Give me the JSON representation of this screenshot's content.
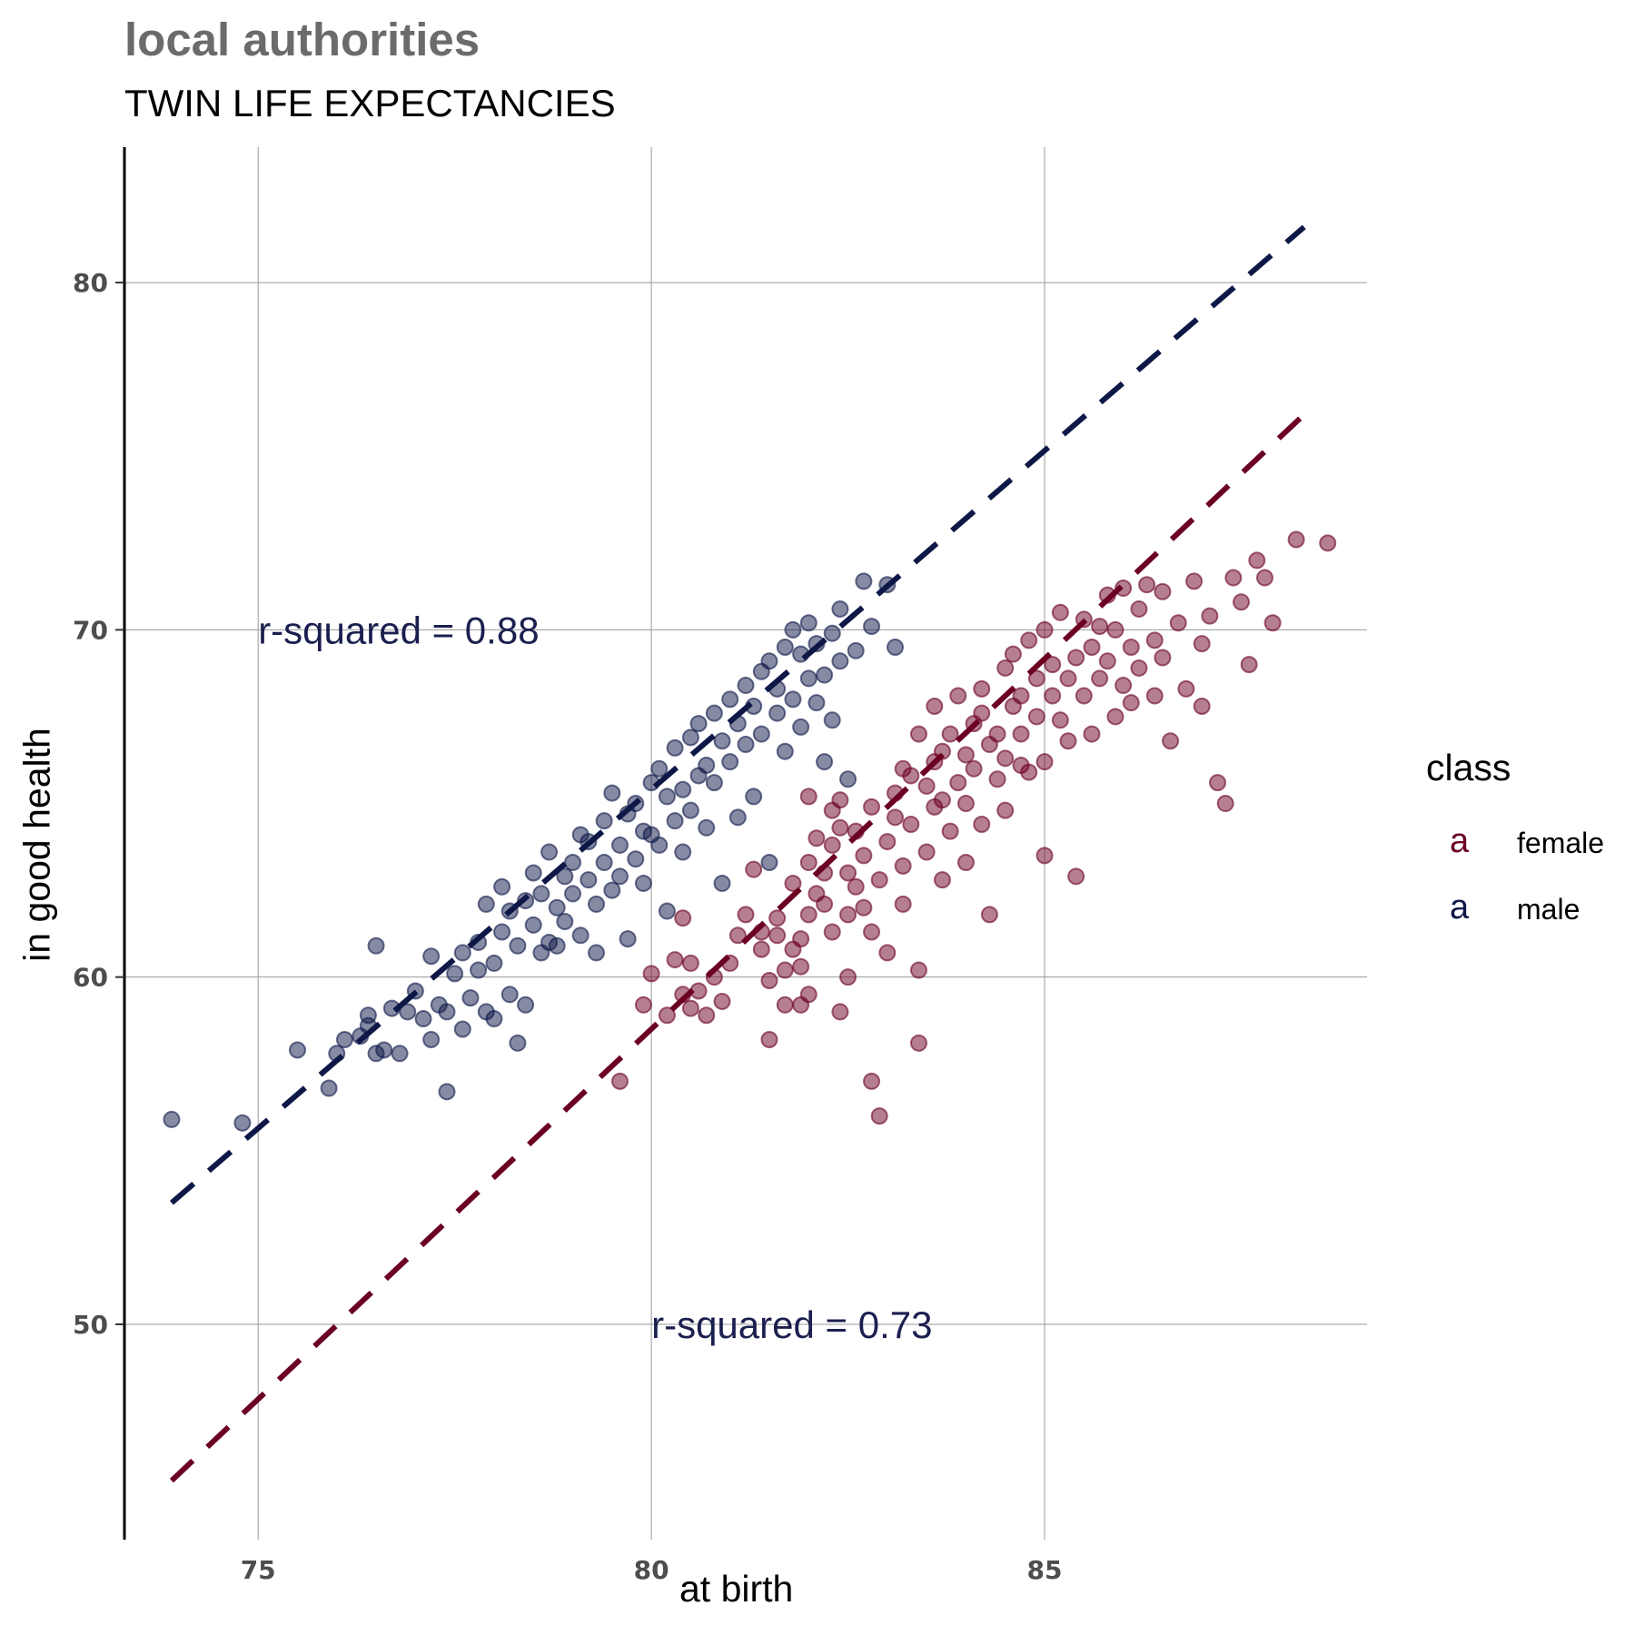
{
  "header": {
    "title": "local authorities",
    "subtitle": "TWIN LIFE EXPECTANCIES"
  },
  "legend": {
    "title": "class",
    "key_glyph": "a",
    "items": [
      {
        "label": "female",
        "color": "#6b0022"
      },
      {
        "label": "male",
        "color": "#0e1847"
      }
    ]
  },
  "chart_data": {
    "type": "scatter",
    "title": "local authorities",
    "subtitle": "TWIN LIFE EXPECTANCIES",
    "xlabel": "at birth",
    "ylabel": "in good health",
    "xlim": [
      73.3,
      89.1
    ],
    "ylim": [
      43.8,
      83.9
    ],
    "xticks": [
      75,
      80,
      85
    ],
    "yticks": [
      50,
      60,
      70,
      80
    ],
    "grid": true,
    "legend_position": "right",
    "series": [
      {
        "name": "female",
        "color": "#6b0022",
        "points": [
          [
            79.6,
            57.0
          ],
          [
            79.9,
            59.2
          ],
          [
            80.0,
            60.1
          ],
          [
            80.2,
            58.9
          ],
          [
            80.3,
            60.5
          ],
          [
            80.4,
            61.7
          ],
          [
            80.4,
            59.5
          ],
          [
            80.5,
            60.4
          ],
          [
            80.5,
            59.1
          ],
          [
            80.6,
            59.6
          ],
          [
            80.7,
            58.9
          ],
          [
            80.8,
            60.0
          ],
          [
            80.9,
            59.3
          ],
          [
            81.0,
            60.4
          ],
          [
            81.1,
            61.2
          ],
          [
            81.2,
            61.8
          ],
          [
            81.3,
            63.1
          ],
          [
            81.4,
            61.3
          ],
          [
            81.4,
            60.8
          ],
          [
            81.5,
            59.9
          ],
          [
            81.5,
            58.2
          ],
          [
            81.6,
            61.7
          ],
          [
            81.6,
            61.2
          ],
          [
            81.7,
            59.2
          ],
          [
            81.7,
            60.2
          ],
          [
            81.8,
            60.8
          ],
          [
            81.8,
            62.7
          ],
          [
            81.9,
            59.2
          ],
          [
            81.9,
            61.1
          ],
          [
            81.9,
            60.3
          ],
          [
            82.0,
            63.3
          ],
          [
            82.0,
            61.8
          ],
          [
            82.0,
            59.5
          ],
          [
            82.0,
            65.2
          ],
          [
            82.1,
            64.0
          ],
          [
            82.1,
            62.4
          ],
          [
            82.2,
            63.0
          ],
          [
            82.2,
            62.1
          ],
          [
            82.3,
            61.3
          ],
          [
            82.3,
            63.8
          ],
          [
            82.3,
            64.8
          ],
          [
            82.4,
            65.1
          ],
          [
            82.4,
            59.0
          ],
          [
            82.4,
            64.3
          ],
          [
            82.5,
            60.0
          ],
          [
            82.5,
            61.8
          ],
          [
            82.5,
            63.0
          ],
          [
            82.6,
            62.6
          ],
          [
            82.6,
            64.2
          ],
          [
            82.7,
            62.0
          ],
          [
            82.7,
            63.5
          ],
          [
            82.8,
            61.3
          ],
          [
            82.8,
            64.9
          ],
          [
            82.8,
            57.0
          ],
          [
            82.9,
            56.0
          ],
          [
            82.9,
            62.8
          ],
          [
            83.0,
            60.7
          ],
          [
            83.0,
            63.9
          ],
          [
            83.1,
            64.6
          ],
          [
            83.1,
            65.3
          ],
          [
            83.2,
            62.1
          ],
          [
            83.2,
            66.0
          ],
          [
            83.2,
            63.2
          ],
          [
            83.3,
            64.4
          ],
          [
            83.3,
            65.8
          ],
          [
            83.4,
            67.0
          ],
          [
            83.4,
            60.2
          ],
          [
            83.4,
            58.1
          ],
          [
            83.5,
            65.5
          ],
          [
            83.5,
            63.6
          ],
          [
            83.6,
            66.2
          ],
          [
            83.6,
            64.9
          ],
          [
            83.6,
            67.8
          ],
          [
            83.7,
            66.5
          ],
          [
            83.7,
            65.1
          ],
          [
            83.7,
            62.8
          ],
          [
            83.8,
            64.2
          ],
          [
            83.8,
            67.0
          ],
          [
            83.9,
            65.6
          ],
          [
            83.9,
            68.1
          ],
          [
            84.0,
            66.4
          ],
          [
            84.0,
            65.0
          ],
          [
            84.0,
            63.3
          ],
          [
            84.1,
            67.3
          ],
          [
            84.1,
            66.0
          ],
          [
            84.2,
            64.4
          ],
          [
            84.2,
            68.3
          ],
          [
            84.2,
            67.6
          ],
          [
            84.3,
            66.7
          ],
          [
            84.3,
            61.8
          ],
          [
            84.4,
            65.7
          ],
          [
            84.4,
            67.0
          ],
          [
            84.5,
            68.9
          ],
          [
            84.5,
            66.3
          ],
          [
            84.5,
            64.8
          ],
          [
            84.6,
            67.8
          ],
          [
            84.6,
            69.3
          ],
          [
            84.7,
            66.1
          ],
          [
            84.7,
            68.1
          ],
          [
            84.7,
            67.0
          ],
          [
            84.8,
            69.7
          ],
          [
            84.8,
            65.9
          ],
          [
            84.9,
            67.5
          ],
          [
            84.9,
            68.6
          ],
          [
            85.0,
            66.2
          ],
          [
            85.0,
            70.0
          ],
          [
            85.0,
            63.5
          ],
          [
            85.1,
            68.1
          ],
          [
            85.1,
            69.0
          ],
          [
            85.2,
            67.4
          ],
          [
            85.2,
            70.5
          ],
          [
            85.3,
            68.6
          ],
          [
            85.3,
            66.8
          ],
          [
            85.4,
            69.2
          ],
          [
            85.4,
            62.9
          ],
          [
            85.5,
            70.3
          ],
          [
            85.5,
            68.1
          ],
          [
            85.6,
            69.5
          ],
          [
            85.6,
            67.0
          ],
          [
            85.7,
            70.1
          ],
          [
            85.7,
            68.6
          ],
          [
            85.8,
            71.0
          ],
          [
            85.8,
            69.1
          ],
          [
            85.9,
            67.5
          ],
          [
            85.9,
            70.0
          ],
          [
            86.0,
            68.4
          ],
          [
            86.0,
            71.2
          ],
          [
            86.1,
            69.5
          ],
          [
            86.1,
            67.9
          ],
          [
            86.2,
            70.6
          ],
          [
            86.2,
            68.9
          ],
          [
            86.3,
            71.3
          ],
          [
            86.4,
            69.7
          ],
          [
            86.4,
            68.1
          ],
          [
            86.5,
            71.1
          ],
          [
            86.5,
            69.2
          ],
          [
            86.6,
            66.8
          ],
          [
            86.7,
            70.2
          ],
          [
            86.8,
            68.3
          ],
          [
            86.9,
            71.4
          ],
          [
            87.0,
            69.6
          ],
          [
            87.0,
            67.8
          ],
          [
            87.1,
            70.4
          ],
          [
            87.2,
            65.6
          ],
          [
            87.3,
            65.0
          ],
          [
            87.4,
            71.5
          ],
          [
            87.5,
            70.8
          ],
          [
            87.6,
            69.0
          ],
          [
            87.7,
            72.0
          ],
          [
            87.8,
            71.5
          ],
          [
            87.9,
            70.2
          ],
          [
            88.2,
            72.6
          ],
          [
            88.6,
            72.5
          ]
        ]
      },
      {
        "name": "male",
        "color": "#0e1847",
        "points": [
          [
            73.9,
            55.9
          ],
          [
            74.8,
            55.8
          ],
          [
            75.5,
            57.9
          ],
          [
            75.9,
            56.8
          ],
          [
            76.0,
            57.8
          ],
          [
            76.1,
            58.2
          ],
          [
            76.3,
            58.3
          ],
          [
            76.4,
            58.6
          ],
          [
            76.4,
            58.9
          ],
          [
            76.5,
            57.8
          ],
          [
            76.5,
            60.9
          ],
          [
            76.6,
            57.9
          ],
          [
            76.7,
            59.1
          ],
          [
            76.8,
            57.8
          ],
          [
            76.9,
            59.0
          ],
          [
            77.0,
            59.6
          ],
          [
            77.1,
            58.8
          ],
          [
            77.2,
            58.2
          ],
          [
            77.2,
            60.6
          ],
          [
            77.3,
            59.2
          ],
          [
            77.4,
            56.7
          ],
          [
            77.4,
            59.0
          ],
          [
            77.5,
            60.1
          ],
          [
            77.6,
            58.5
          ],
          [
            77.6,
            60.7
          ],
          [
            77.7,
            59.4
          ],
          [
            77.8,
            60.2
          ],
          [
            77.8,
            61.0
          ],
          [
            77.9,
            59.0
          ],
          [
            77.9,
            62.1
          ],
          [
            78.0,
            60.4
          ],
          [
            78.0,
            58.8
          ],
          [
            78.1,
            61.3
          ],
          [
            78.1,
            62.6
          ],
          [
            78.2,
            59.5
          ],
          [
            78.2,
            61.9
          ],
          [
            78.3,
            58.1
          ],
          [
            78.3,
            60.9
          ],
          [
            78.4,
            62.2
          ],
          [
            78.4,
            59.2
          ],
          [
            78.5,
            61.5
          ],
          [
            78.5,
            63.0
          ],
          [
            78.6,
            60.7
          ],
          [
            78.6,
            62.4
          ],
          [
            78.7,
            61.0
          ],
          [
            78.7,
            63.6
          ],
          [
            78.8,
            62.0
          ],
          [
            78.8,
            60.9
          ],
          [
            78.9,
            62.9
          ],
          [
            78.9,
            61.6
          ],
          [
            79.0,
            63.3
          ],
          [
            79.0,
            62.4
          ],
          [
            79.1,
            64.1
          ],
          [
            79.1,
            61.2
          ],
          [
            79.2,
            62.8
          ],
          [
            79.2,
            63.9
          ],
          [
            79.3,
            62.1
          ],
          [
            79.3,
            60.7
          ],
          [
            79.4,
            64.5
          ],
          [
            79.4,
            63.3
          ],
          [
            79.5,
            62.5
          ],
          [
            79.5,
            65.3
          ],
          [
            79.6,
            63.8
          ],
          [
            79.6,
            62.9
          ],
          [
            79.7,
            64.7
          ],
          [
            79.7,
            61.1
          ],
          [
            79.8,
            63.4
          ],
          [
            79.8,
            65.0
          ],
          [
            79.9,
            64.2
          ],
          [
            79.9,
            62.7
          ],
          [
            80.0,
            65.6
          ],
          [
            80.0,
            64.1
          ],
          [
            80.1,
            66.0
          ],
          [
            80.1,
            63.8
          ],
          [
            80.2,
            65.2
          ],
          [
            80.2,
            61.9
          ],
          [
            80.3,
            64.5
          ],
          [
            80.3,
            66.6
          ],
          [
            80.4,
            65.4
          ],
          [
            80.4,
            63.6
          ],
          [
            80.5,
            66.9
          ],
          [
            80.5,
            64.8
          ],
          [
            80.6,
            65.8
          ],
          [
            80.6,
            67.3
          ],
          [
            80.7,
            66.1
          ],
          [
            80.7,
            64.3
          ],
          [
            80.8,
            67.6
          ],
          [
            80.8,
            65.6
          ],
          [
            80.9,
            66.8
          ],
          [
            80.9,
            62.7
          ],
          [
            81.0,
            68.0
          ],
          [
            81.0,
            66.2
          ],
          [
            81.1,
            67.3
          ],
          [
            81.1,
            64.6
          ],
          [
            81.2,
            68.4
          ],
          [
            81.2,
            66.7
          ],
          [
            81.3,
            67.8
          ],
          [
            81.3,
            65.2
          ],
          [
            81.4,
            68.8
          ],
          [
            81.4,
            67.0
          ],
          [
            81.5,
            69.1
          ],
          [
            81.5,
            63.3
          ],
          [
            81.6,
            67.6
          ],
          [
            81.6,
            68.3
          ],
          [
            81.7,
            69.5
          ],
          [
            81.7,
            66.5
          ],
          [
            81.8,
            68.0
          ],
          [
            81.8,
            70.0
          ],
          [
            81.9,
            67.2
          ],
          [
            81.9,
            69.3
          ],
          [
            82.0,
            68.6
          ],
          [
            82.0,
            70.2
          ],
          [
            82.1,
            67.9
          ],
          [
            82.1,
            69.6
          ],
          [
            82.2,
            68.7
          ],
          [
            82.2,
            66.2
          ],
          [
            82.3,
            69.9
          ],
          [
            82.3,
            67.4
          ],
          [
            82.4,
            70.6
          ],
          [
            82.4,
            69.1
          ],
          [
            82.5,
            65.7
          ],
          [
            82.6,
            69.4
          ],
          [
            82.7,
            71.4
          ],
          [
            82.8,
            70.1
          ],
          [
            83.0,
            71.3
          ],
          [
            83.1,
            69.5
          ]
        ]
      }
    ],
    "fit_lines": [
      {
        "series": "male",
        "x": [
          73.9,
          88.3
        ],
        "y": [
          53.5,
          81.6
        ]
      },
      {
        "series": "female",
        "x": [
          73.9,
          88.3
        ],
        "y": [
          45.5,
          76.2
        ]
      }
    ],
    "annotations": [
      {
        "text": "r-squared = 0.88",
        "x": 75,
        "y": 70
      },
      {
        "text": "r-squared = 0.73",
        "x": 80,
        "y": 50
      }
    ]
  }
}
